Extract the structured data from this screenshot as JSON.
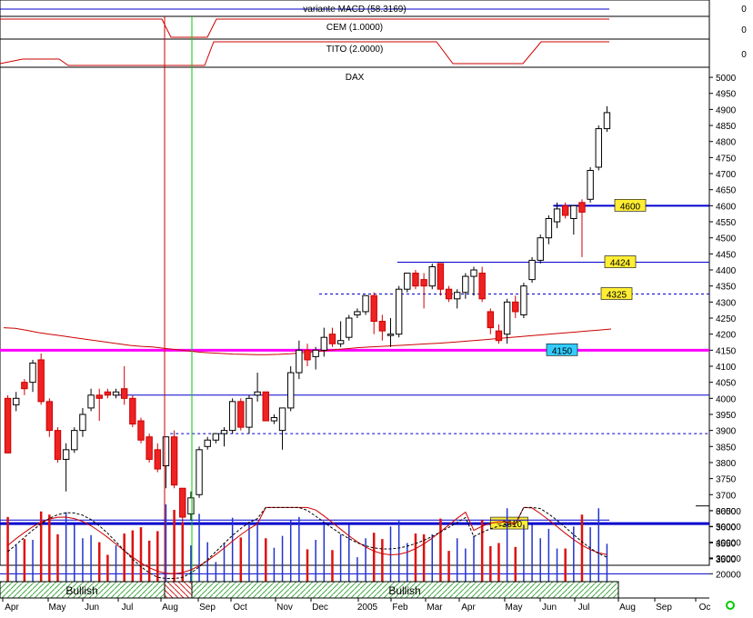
{
  "panels": {
    "macd_label": "variante MACD (58.3169)",
    "cem_label": "CEM (1.0000)",
    "tito_label": "TITO (2.0000)",
    "price_title": "DAX",
    "indicator_zero": "0"
  },
  "trend_bar": {
    "labels": [
      "Bullish",
      "Bullish"
    ]
  },
  "chart_data": {
    "type": "candlestick",
    "title": "DAX",
    "ylim": [
      3480,
      5020
    ],
    "y_ticks": [
      3500,
      3550,
      3600,
      3650,
      3700,
      3750,
      3800,
      3850,
      3900,
      3950,
      4000,
      4050,
      4100,
      4150,
      4200,
      4250,
      4300,
      4350,
      4400,
      4450,
      4500,
      4550,
      4600,
      4650,
      4700,
      4750,
      4800,
      4850,
      4900,
      4950,
      5000
    ],
    "x_labels": [
      "Apr",
      "May",
      "Jun",
      "Jul",
      "Aug",
      "Sep",
      "Oct",
      "Nov",
      "Dec",
      "2005",
      "Feb",
      "Mar",
      "Apr",
      "May",
      "Jun",
      "Jul",
      "Aug",
      "Sep",
      "Oc"
    ],
    "candles": [
      {
        "o": 4000,
        "h": 4010,
        "l": 3830,
        "c": 3830
      },
      {
        "o": 3980,
        "h": 4020,
        "l": 3960,
        "c": 4000
      },
      {
        "o": 4050,
        "h": 4060,
        "l": 4010,
        "c": 4030
      },
      {
        "o": 4050,
        "h": 4120,
        "l": 4020,
        "c": 4110
      },
      {
        "o": 4120,
        "h": 4140,
        "l": 3980,
        "c": 3990
      },
      {
        "o": 3990,
        "h": 4000,
        "l": 3880,
        "c": 3900
      },
      {
        "o": 3900,
        "h": 3910,
        "l": 3800,
        "c": 3810
      },
      {
        "o": 3810,
        "h": 3860,
        "l": 3710,
        "c": 3840
      },
      {
        "o": 3840,
        "h": 3910,
        "l": 3830,
        "c": 3900
      },
      {
        "o": 3900,
        "h": 3970,
        "l": 3880,
        "c": 3950
      },
      {
        "o": 3970,
        "h": 4030,
        "l": 3960,
        "c": 4010
      },
      {
        "o": 4010,
        "h": 4030,
        "l": 3930,
        "c": 4000
      },
      {
        "o": 4020,
        "h": 4030,
        "l": 4000,
        "c": 4010
      },
      {
        "o": 4010,
        "h": 4030,
        "l": 4000,
        "c": 4020
      },
      {
        "o": 4030,
        "h": 4100,
        "l": 3980,
        "c": 4000
      },
      {
        "o": 4000,
        "h": 4010,
        "l": 3910,
        "c": 3920
      },
      {
        "o": 3930,
        "h": 3940,
        "l": 3860,
        "c": 3870
      },
      {
        "o": 3880,
        "h": 3890,
        "l": 3800,
        "c": 3810
      },
      {
        "o": 3840,
        "h": 3860,
        "l": 3770,
        "c": 3780
      },
      {
        "o": 3790,
        "h": 3880,
        "l": 3720,
        "c": 3880
      },
      {
        "o": 3880,
        "h": 3900,
        "l": 3720,
        "c": 3730
      },
      {
        "o": 3720,
        "h": 3720,
        "l": 3610,
        "c": 3630
      },
      {
        "o": 3640,
        "h": 3710,
        "l": 3620,
        "c": 3690
      },
      {
        "o": 3700,
        "h": 3850,
        "l": 3690,
        "c": 3840
      },
      {
        "o": 3850,
        "h": 3880,
        "l": 3840,
        "c": 3870
      },
      {
        "o": 3870,
        "h": 3890,
        "l": 3860,
        "c": 3890
      },
      {
        "o": 3890,
        "h": 3910,
        "l": 3850,
        "c": 3900
      },
      {
        "o": 3900,
        "h": 4000,
        "l": 3890,
        "c": 3990
      },
      {
        "o": 3990,
        "h": 4000,
        "l": 3900,
        "c": 3910
      },
      {
        "o": 3910,
        "h": 4010,
        "l": 3890,
        "c": 4000
      },
      {
        "o": 4010,
        "h": 4080,
        "l": 3990,
        "c": 4020
      },
      {
        "o": 4020,
        "h": 4020,
        "l": 3930,
        "c": 3930
      },
      {
        "o": 3930,
        "h": 3950,
        "l": 3920,
        "c": 3940
      },
      {
        "o": 3900,
        "h": 3960,
        "l": 3840,
        "c": 3970
      },
      {
        "o": 3970,
        "h": 4100,
        "l": 3960,
        "c": 4080
      },
      {
        "o": 4080,
        "h": 4180,
        "l": 4060,
        "c": 4150
      },
      {
        "o": 4150,
        "h": 4170,
        "l": 4100,
        "c": 4120
      },
      {
        "o": 4130,
        "h": 4160,
        "l": 4090,
        "c": 4150
      },
      {
        "o": 4150,
        "h": 4220,
        "l": 4130,
        "c": 4190
      },
      {
        "o": 4200,
        "h": 4220,
        "l": 4160,
        "c": 4170
      },
      {
        "o": 4170,
        "h": 4240,
        "l": 4160,
        "c": 4180
      },
      {
        "o": 4190,
        "h": 4260,
        "l": 4180,
        "c": 4250
      },
      {
        "o": 4260,
        "h": 4280,
        "l": 4250,
        "c": 4270
      },
      {
        "o": 4270,
        "h": 4320,
        "l": 4260,
        "c": 4320
      },
      {
        "o": 4320,
        "h": 4330,
        "l": 4200,
        "c": 4240
      },
      {
        "o": 4240,
        "h": 4260,
        "l": 4180,
        "c": 4210
      },
      {
        "o": 4200,
        "h": 4250,
        "l": 4160,
        "c": 4200
      },
      {
        "o": 4200,
        "h": 4350,
        "l": 4190,
        "c": 4340
      },
      {
        "o": 4340,
        "h": 4390,
        "l": 4330,
        "c": 4390
      },
      {
        "o": 4390,
        "h": 4400,
        "l": 4340,
        "c": 4350
      },
      {
        "o": 4370,
        "h": 4390,
        "l": 4280,
        "c": 4350
      },
      {
        "o": 4350,
        "h": 4420,
        "l": 4340,
        "c": 4410
      },
      {
        "o": 4420,
        "h": 4420,
        "l": 4320,
        "c": 4340
      },
      {
        "o": 4340,
        "h": 4350,
        "l": 4300,
        "c": 4310
      },
      {
        "o": 4310,
        "h": 4340,
        "l": 4280,
        "c": 4330
      },
      {
        "o": 4330,
        "h": 4390,
        "l": 4310,
        "c": 4380
      },
      {
        "o": 4380,
        "h": 4410,
        "l": 4320,
        "c": 4400
      },
      {
        "o": 4390,
        "h": 4410,
        "l": 4300,
        "c": 4310
      },
      {
        "o": 4270,
        "h": 4280,
        "l": 4200,
        "c": 4220
      },
      {
        "o": 4210,
        "h": 4230,
        "l": 4170,
        "c": 4180
      },
      {
        "o": 4200,
        "h": 4310,
        "l": 4170,
        "c": 4300
      },
      {
        "o": 4300,
        "h": 4320,
        "l": 4250,
        "c": 4270
      },
      {
        "o": 4260,
        "h": 4360,
        "l": 4250,
        "c": 4350
      },
      {
        "o": 4370,
        "h": 4440,
        "l": 4360,
        "c": 4430
      },
      {
        "o": 4430,
        "h": 4510,
        "l": 4420,
        "c": 4500
      },
      {
        "o": 4500,
        "h": 4570,
        "l": 4480,
        "c": 4560
      },
      {
        "o": 4550,
        "h": 4610,
        "l": 4530,
        "c": 4590
      },
      {
        "o": 4600,
        "h": 4610,
        "l": 4560,
        "c": 4570
      },
      {
        "o": 4560,
        "h": 4600,
        "l": 4510,
        "c": 4600
      },
      {
        "o": 4610,
        "h": 4620,
        "l": 4440,
        "c": 4580
      },
      {
        "o": 4620,
        "h": 4720,
        "l": 4610,
        "c": 4710
      },
      {
        "o": 4720,
        "h": 4850,
        "l": 4710,
        "c": 4840
      },
      {
        "o": 4840,
        "h": 4910,
        "l": 4830,
        "c": 4890
      }
    ],
    "horizontal_levels": [
      {
        "value": 4600,
        "label": "4600",
        "style": "solid",
        "color": "#0000cc",
        "width": 2,
        "x_from": 0.78
      },
      {
        "value": 4424,
        "label": "4424",
        "style": "solid",
        "color": "#0000cc",
        "width": 1,
        "x_from": 0.56
      },
      {
        "value": 4325,
        "label": "4325",
        "style": "dashed",
        "color": "#0000cc",
        "width": 1,
        "x_from": 0.45
      },
      {
        "value": 4150,
        "label": "4150",
        "style": "solid",
        "color": "#ff00ff",
        "width": 3,
        "x_from": 0
      },
      {
        "value": 4010,
        "label": "",
        "style": "solid",
        "color": "#0000cc",
        "width": 1,
        "x_from": 0.16
      },
      {
        "value": 3890,
        "label": "",
        "style": "dashed",
        "color": "#0000cc",
        "width": 1,
        "x_from": 0.24
      },
      {
        "value": 3610,
        "label": "~3610",
        "style": "solid",
        "color": "#0000cc",
        "width": 3,
        "x_from": 0
      }
    ],
    "moving_average": [
      4220,
      4218,
      4212,
      4205,
      4200,
      4195,
      4190,
      4185,
      4180,
      4175,
      4170,
      4165,
      4162,
      4160,
      4156,
      4152,
      4148,
      4144,
      4142,
      4140,
      4138,
      4137,
      4136,
      4136,
      4137,
      4139,
      4142,
      4145,
      4148,
      4152,
      4155,
      4158,
      4160,
      4162,
      4164,
      4166,
      4168,
      4170,
      4172,
      4174,
      4177,
      4180,
      4183,
      4186,
      4189,
      4192,
      4195,
      4198,
      4201,
      4204,
      4207,
      4210,
      4213,
      4216
    ],
    "volume_panel": {
      "y_ticks": [
        20000,
        30000,
        40000,
        50000,
        60000
      ],
      "ylim": [
        15000,
        68000
      ],
      "threshold": 54000
    }
  }
}
